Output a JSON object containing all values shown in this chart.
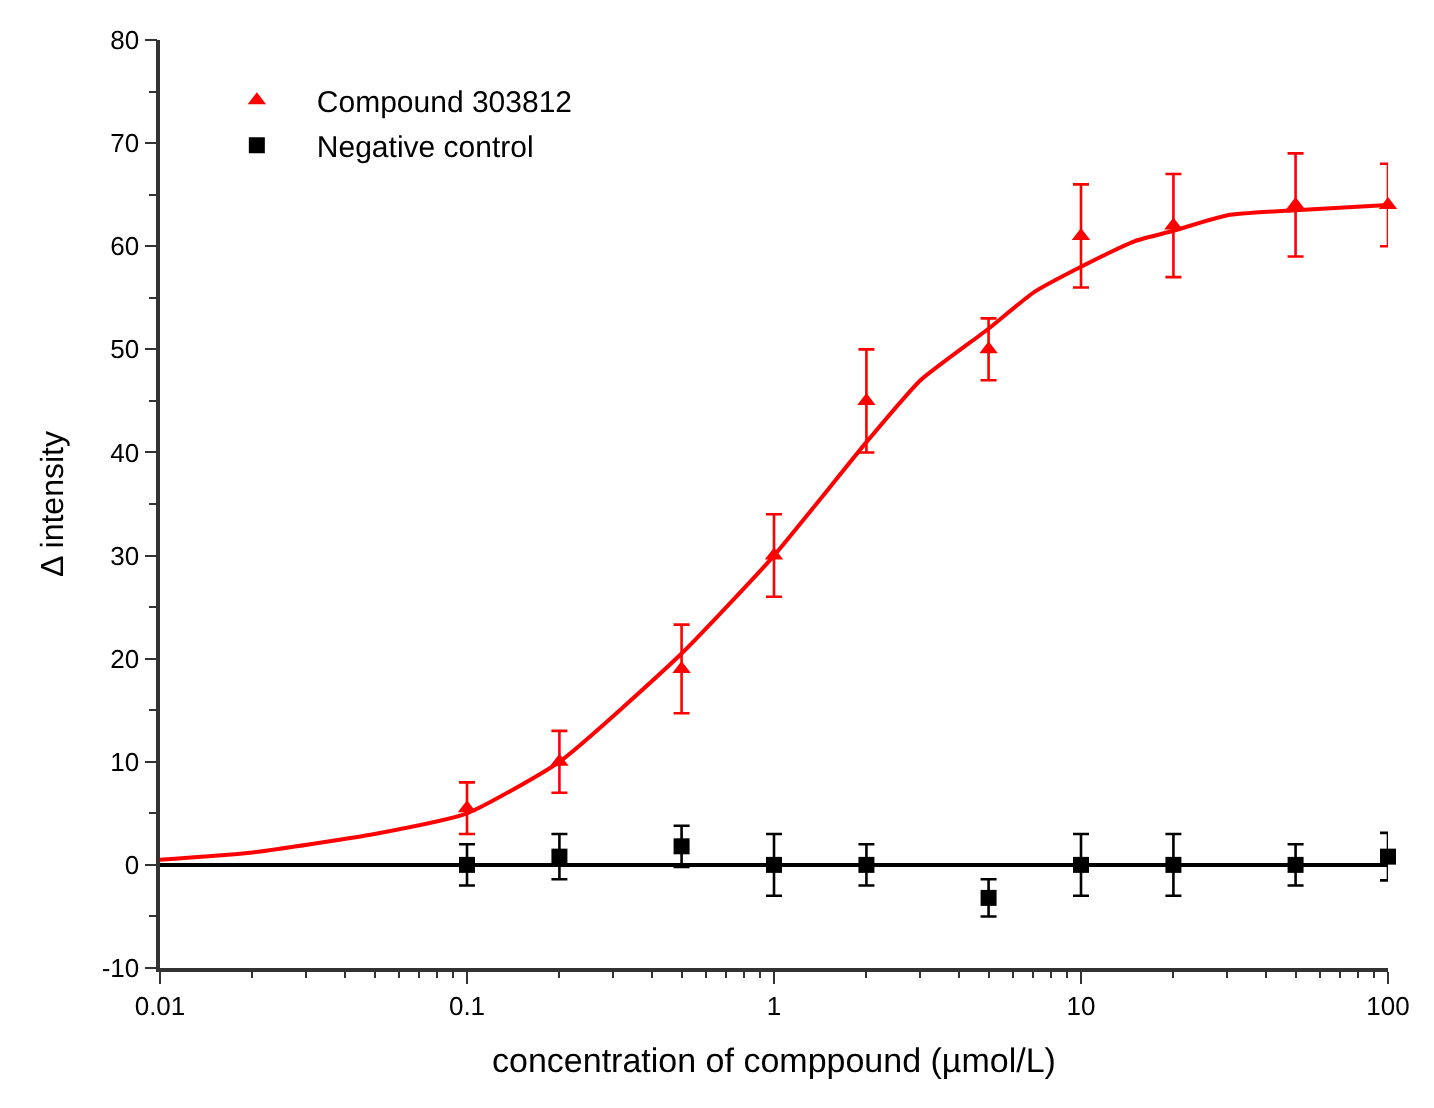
{
  "chart_data": {
    "type": "scatter",
    "xlabel": "concentration of comppound (µmol/L)",
    "ylabel": "Δ intensity",
    "log": "x",
    "xlim": [
      0.01,
      100
    ],
    "xticks": [
      0.01,
      0.1,
      1,
      10,
      100
    ],
    "ylim": [
      -10,
      80
    ],
    "yticks": [
      -10,
      0,
      10,
      20,
      30,
      40,
      50,
      60,
      70,
      80
    ],
    "legend": "top left",
    "series": [
      {
        "name": "Compound 303812",
        "marker": "triangle",
        "color": "#ff0000",
        "x": [
          0.1,
          0.2,
          0.5,
          1,
          2,
          5,
          10,
          20,
          50,
          100
        ],
        "values": [
          5.5,
          10,
          19,
          30,
          45,
          50,
          61,
          62,
          64,
          64
        ],
        "errors": [
          2.5,
          3,
          4.3,
          4,
          5,
          3,
          5,
          5,
          5,
          4
        ]
      },
      {
        "name": "Negative control",
        "marker": "square",
        "color": "#000000",
        "x": [
          0.1,
          0.2,
          0.5,
          1,
          2,
          5,
          10,
          20,
          50,
          100
        ],
        "values": [
          0,
          0.8,
          1.8,
          0,
          0,
          -3.2,
          0,
          0,
          0,
          0.8
        ],
        "errors": [
          2,
          2.2,
          2,
          3,
          2,
          1.8,
          3,
          3,
          2,
          2.3
        ]
      },
      {
        "type": "line",
        "marker": "none",
        "color": "#ff0000",
        "x": [
          0.01,
          0.02,
          0.05,
          0.1,
          0.2,
          0.5,
          1,
          2,
          3,
          5,
          7,
          10,
          15,
          20,
          30,
          50,
          100
        ],
        "values": [
          0.5,
          1.2,
          3,
          5,
          10,
          20.5,
          30,
          41,
          47,
          52,
          55.5,
          58,
          60.5,
          61.5,
          63,
          63.5,
          64
        ]
      },
      {
        "type": "line",
        "marker": "none",
        "color": "#000000",
        "x": [
          0.01,
          100
        ],
        "values": [
          0,
          0
        ]
      }
    ]
  }
}
